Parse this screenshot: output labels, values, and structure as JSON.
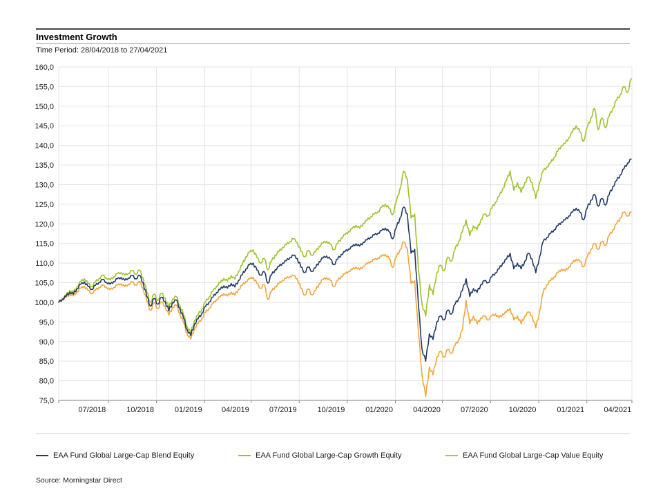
{
  "header": {
    "title": "Investment Growth",
    "time_period": "Time Period: 28/04/2018 to 27/04/2021"
  },
  "footer": {
    "source": "Source: Morningstar Direct"
  },
  "chart_data": {
    "type": "line",
    "title": "Investment Growth",
    "subtitle": "Time Period: 28/04/2018 to 27/04/2021",
    "xlabel": "",
    "ylabel": "",
    "grid": true,
    "legend_position": "bottom",
    "ylim": [
      75,
      160
    ],
    "ytick_step": 5,
    "ytick_labels": [
      "160,0",
      "155,0",
      "150,0",
      "145,0",
      "140,0",
      "135,0",
      "130,0",
      "125,0",
      "120,0",
      "115,0",
      "110,0",
      "105,0",
      "100,0",
      "95,0",
      "90,0",
      "85,0",
      "80,0",
      "75,0"
    ],
    "xticks": [
      {
        "label": "07/2018",
        "f": 0.0584
      },
      {
        "label": "10/2018",
        "f": 0.1425
      },
      {
        "label": "01/2019",
        "f": 0.2265
      },
      {
        "label": "04/2019",
        "f": 0.3087
      },
      {
        "label": "07/2019",
        "f": 0.3918
      },
      {
        "label": "10/2019",
        "f": 0.4758
      },
      {
        "label": "01/2020",
        "f": 0.5598
      },
      {
        "label": "04/2020",
        "f": 0.6429
      },
      {
        "label": "07/2020",
        "f": 0.726
      },
      {
        "label": "10/2020",
        "f": 0.81
      },
      {
        "label": "01/2021",
        "f": 0.8941
      },
      {
        "label": "04/2021",
        "f": 0.9763
      }
    ],
    "vgrid_f": [
      0.0868,
      0.1708,
      0.2548,
      0.3361,
      0.4201,
      0.5041,
      0.5881,
      0.6703,
      0.7543,
      0.8384,
      0.9224
    ],
    "x_unit": "weeks from 28/04/2018 to 27/04/2021",
    "series": [
      {
        "name": "EAA Fund Global Large-Cap Blend Equity",
        "color": "#1F3864",
        "values": [
          100.0,
          100.8,
          101.5,
          102.6,
          102.1,
          103.5,
          104.6,
          105.2,
          104.0,
          103.3,
          104.3,
          105.1,
          105.8,
          105.1,
          104.6,
          105.3,
          106.0,
          106.3,
          105.6,
          106.2,
          106.8,
          106.0,
          106.9,
          105.0,
          101.5,
          99.0,
          101.0,
          99.5,
          101.3,
          100.2,
          97.8,
          99.9,
          100.6,
          98.5,
          96.0,
          93.0,
          91.5,
          94.5,
          95.8,
          97.2,
          98.9,
          100.1,
          101.3,
          102.5,
          103.3,
          104.2,
          103.6,
          104.8,
          103.9,
          105.6,
          107.0,
          108.5,
          109.6,
          110.0,
          108.2,
          106.9,
          107.8,
          104.9,
          107.0,
          108.3,
          109.1,
          110.0,
          110.6,
          111.4,
          112.0,
          111.2,
          109.0,
          107.6,
          109.0,
          107.9,
          108.8,
          110.4,
          111.3,
          111.8,
          111.0,
          109.6,
          111.0,
          112.2,
          112.9,
          113.6,
          114.2,
          114.9,
          114.3,
          115.3,
          115.9,
          116.6,
          117.2,
          117.6,
          118.3,
          118.9,
          118.0,
          116.2,
          119.0,
          121.5,
          124.3,
          122.5,
          112.5,
          113.5,
          99.5,
          88.0,
          85.0,
          92.0,
          90.5,
          95.0,
          96.5,
          95.5,
          98.0,
          97.0,
          99.5,
          101.0,
          103.0,
          106.0,
          101.5,
          103.5,
          102.5,
          104.5,
          105.5,
          105.0,
          106.5,
          107.5,
          108.5,
          110.0,
          111.0,
          112.5,
          108.5,
          110.0,
          108.5,
          110.5,
          112.5,
          111.0,
          107.5,
          111.5,
          115.5,
          116.5,
          117.5,
          118.5,
          119.5,
          120.5,
          121.0,
          122.0,
          123.0,
          124.0,
          123.0,
          121.0,
          124.0,
          126.0,
          127.5,
          124.5,
          126.5,
          124.8,
          127.5,
          129.5,
          131.0,
          132.5,
          134.0,
          135.5,
          136.5
        ]
      },
      {
        "name": "EAA Fund Global Large-Cap Growth Equity",
        "color": "#9DC229",
        "values": [
          100.0,
          101.0,
          101.8,
          103.0,
          102.5,
          104.0,
          105.3,
          106.0,
          104.8,
          104.0,
          105.2,
          106.1,
          106.9,
          106.2,
          105.7,
          106.5,
          107.3,
          107.6,
          106.9,
          107.4,
          108.1,
          107.2,
          108.2,
          106.2,
          102.6,
          100.0,
          102.1,
          100.5,
          102.3,
          101.1,
          98.6,
          100.8,
          101.5,
          99.3,
          96.8,
          93.8,
          92.2,
          95.4,
          96.8,
          98.3,
          100.1,
          101.4,
          102.8,
          104.1,
          105.0,
          106.1,
          105.4,
          106.8,
          105.9,
          107.9,
          109.5,
          111.6,
          112.8,
          113.4,
          111.4,
          110.0,
          111.2,
          108.3,
          110.5,
          112.0,
          112.9,
          114.0,
          114.7,
          115.5,
          116.2,
          115.3,
          113.0,
          111.6,
          113.2,
          112.0,
          112.9,
          114.3,
          115.1,
          115.6,
          114.8,
          113.4,
          115.0,
          116.4,
          117.2,
          118.0,
          118.8,
          119.6,
          118.9,
          120.1,
          120.9,
          121.8,
          122.5,
          123.1,
          124.2,
          125.0,
          124.0,
          122.3,
          125.6,
          129.0,
          133.4,
          131.5,
          121.5,
          122.5,
          108.5,
          99.5,
          96.5,
          104.5,
          102.0,
          107.5,
          109.5,
          108.0,
          111.5,
          110.5,
          113.5,
          115.5,
          118.0,
          121.0,
          117.0,
          119.5,
          118.5,
          121.0,
          122.5,
          122.0,
          124.0,
          125.5,
          127.0,
          129.0,
          131.0,
          133.5,
          128.5,
          130.5,
          128.0,
          130.5,
          132.0,
          130.5,
          126.5,
          130.5,
          133.5,
          134.5,
          135.5,
          137.0,
          138.5,
          140.0,
          140.5,
          142.0,
          143.5,
          145.0,
          143.5,
          141.0,
          144.5,
          147.0,
          149.5,
          144.0,
          147.0,
          144.5,
          147.5,
          149.5,
          151.5,
          153.0,
          155.0,
          153.5,
          157.0
        ]
      },
      {
        "name": "EAA Fund Global Large-Cap Value Equity",
        "color": "#F2A43A",
        "values": [
          100.0,
          100.6,
          101.2,
          102.1,
          101.6,
          102.7,
          103.6,
          104.1,
          103.0,
          102.2,
          103.1,
          103.8,
          104.4,
          103.8,
          103.2,
          103.8,
          104.4,
          104.7,
          104.0,
          104.6,
          105.2,
          104.4,
          105.3,
          103.6,
          100.3,
          97.9,
          99.9,
          98.4,
          100.1,
          99.0,
          96.7,
          98.7,
          99.3,
          97.2,
          94.8,
          92.0,
          90.6,
          93.4,
          94.6,
          95.9,
          97.4,
          98.5,
          99.6,
          100.7,
          101.4,
          102.2,
          101.6,
          102.6,
          101.8,
          103.3,
          104.3,
          105.3,
          106.0,
          106.4,
          104.8,
          103.6,
          104.5,
          100.7,
          102.8,
          104.0,
          104.8,
          105.6,
          106.1,
          106.6,
          106.8,
          106.0,
          103.6,
          101.8,
          103.4,
          101.9,
          103.0,
          104.8,
          105.8,
          106.3,
          105.6,
          104.0,
          105.5,
          106.6,
          107.2,
          107.9,
          108.4,
          109.0,
          108.3,
          109.2,
          109.8,
          110.4,
          110.9,
          111.2,
          111.8,
          112.2,
          111.2,
          108.9,
          111.5,
          113.4,
          115.4,
          113.8,
          104.8,
          105.5,
          92.5,
          81.5,
          76.0,
          83.5,
          81.5,
          86.0,
          87.5,
          86.0,
          88.0,
          87.0,
          89.0,
          90.5,
          93.0,
          100.5,
          94.5,
          96.5,
          94.5,
          96.0,
          96.5,
          95.5,
          96.5,
          97.0,
          96.0,
          97.0,
          97.5,
          98.5,
          95.5,
          96.5,
          94.5,
          96.5,
          97.5,
          96.5,
          93.5,
          97.5,
          102.5,
          104.5,
          105.5,
          106.5,
          107.5,
          108.5,
          108.0,
          109.0,
          110.0,
          111.0,
          110.5,
          109.0,
          111.5,
          113.5,
          115.0,
          113.5,
          115.5,
          114.5,
          117.0,
          118.5,
          120.0,
          121.5,
          123.0,
          122.0,
          123.0
        ]
      }
    ]
  }
}
